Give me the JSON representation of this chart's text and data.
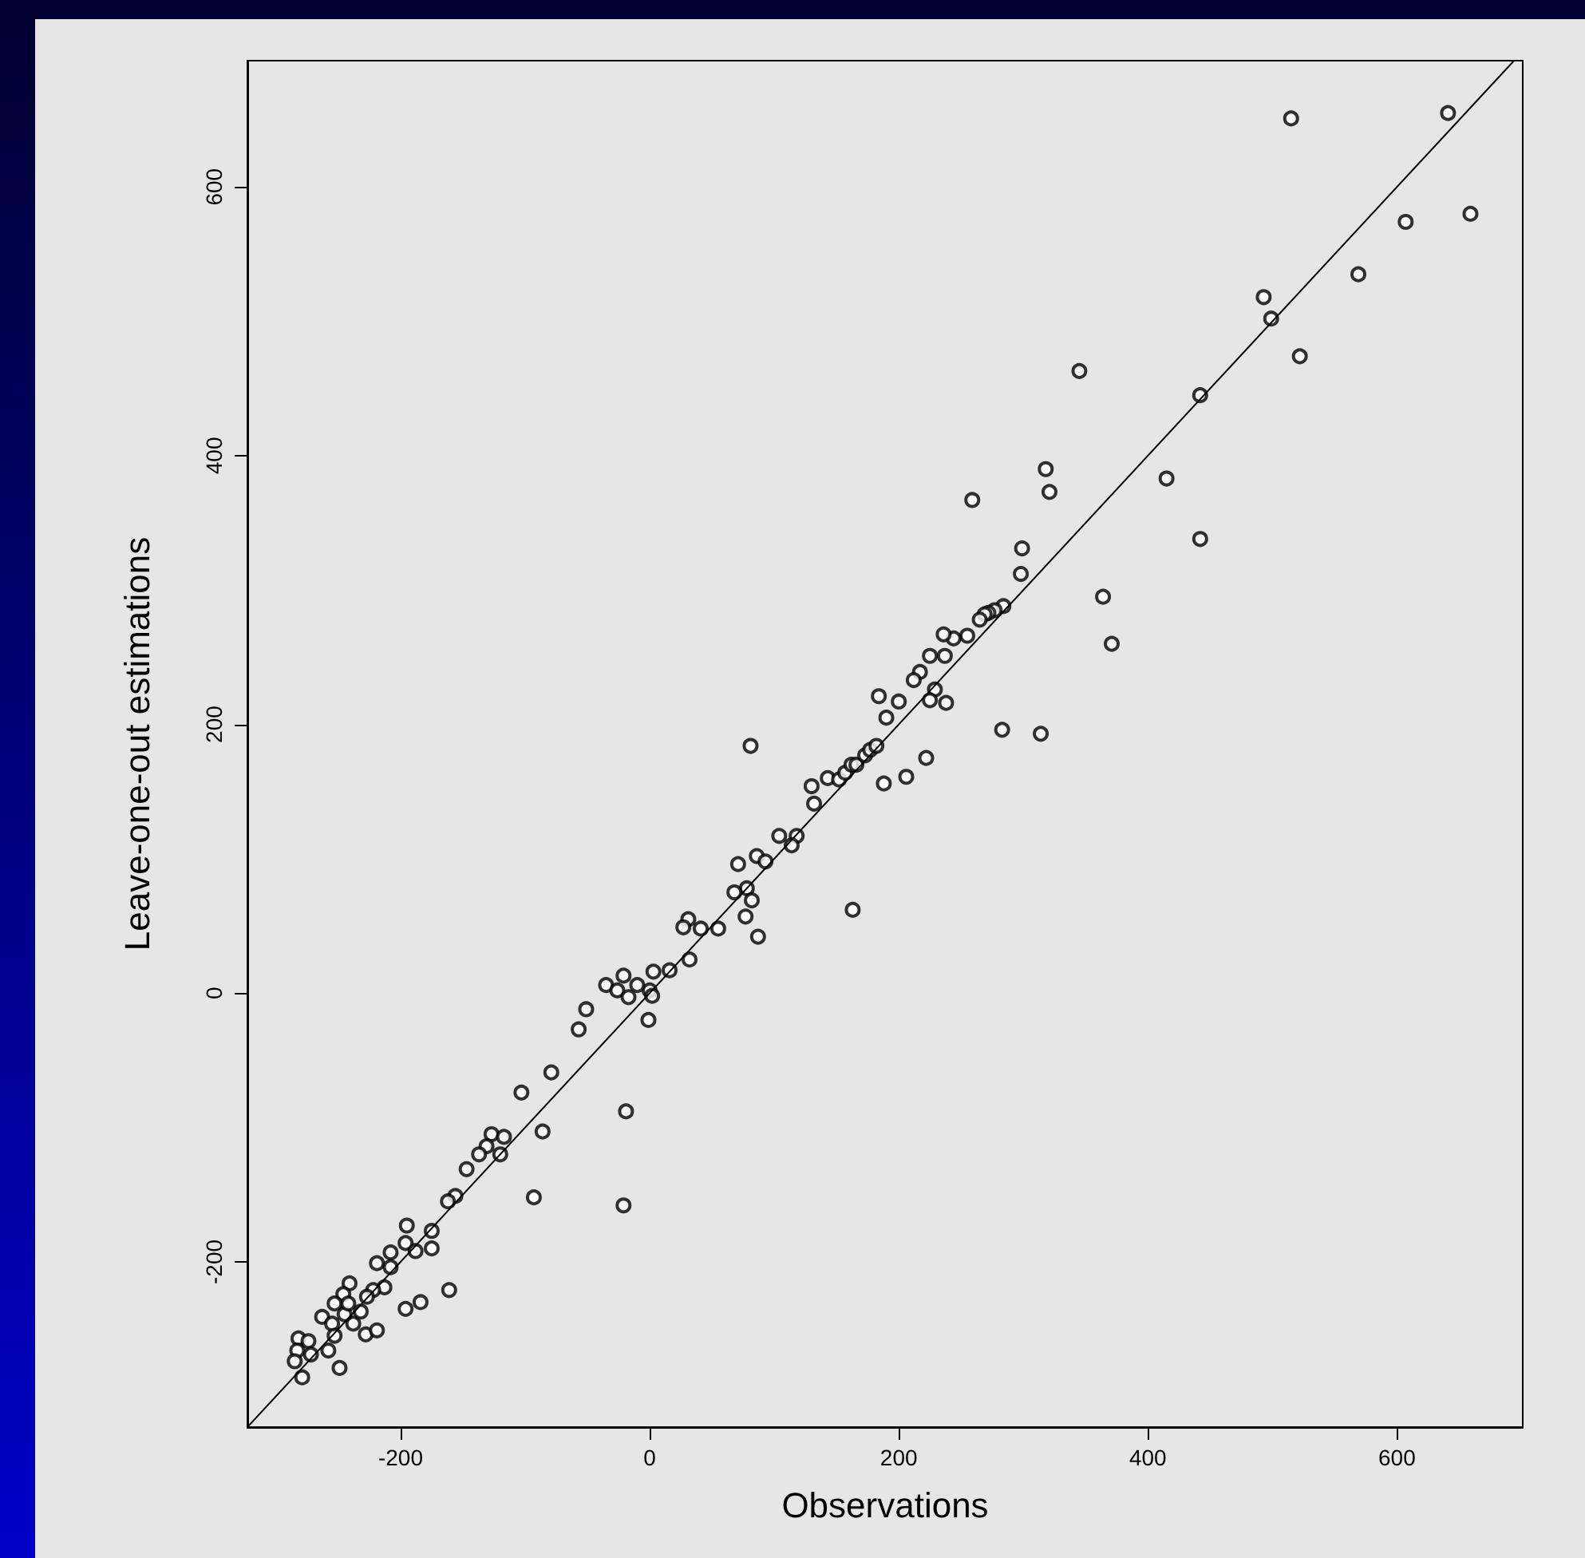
{
  "chart_data": {
    "type": "scatter",
    "xlabel": "Observations",
    "ylabel": "Leave-one-out estimations",
    "xlim": [
      -323,
      701
    ],
    "ylim": [
      -323,
      694
    ],
    "xticks": [
      -200,
      0,
      200,
      400,
      600
    ],
    "yticks": [
      -200,
      0,
      200,
      400,
      600
    ],
    "grid": false,
    "series": [
      {
        "color": "#000000",
        "marker": "circle",
        "x": [
          515,
          641,
          659,
          607,
          569,
          493,
          499,
          522,
          345,
          442,
          318,
          321,
          259,
          415,
          442,
          299,
          298,
          364,
          371,
          284,
          277,
          272,
          269,
          265,
          255,
          244,
          236,
          237,
          225,
          217,
          212,
          200,
          229,
          225,
          238,
          283,
          314,
          184,
          190,
          81,
          222,
          188,
          206,
          130,
          143,
          152,
          157,
          162,
          166,
          173,
          177,
          182,
          132,
          104,
          118,
          114,
          86,
          93,
          71,
          78,
          68,
          82,
          77,
          87,
          163,
          31,
          27,
          41,
          55,
          32,
          16,
          3,
          0,
          2,
          -1,
          -35,
          -21,
          -26,
          -17,
          -10,
          -51,
          -57,
          -79,
          -103,
          -19,
          -86,
          -127,
          -117,
          -120,
          -131,
          -137,
          -147,
          -93,
          -21,
          -156,
          -162,
          -175,
          -195,
          -196,
          -188,
          -208,
          -175,
          -219,
          -208,
          -196,
          -184,
          -161,
          -228,
          -219,
          -213,
          -222,
          -227,
          -241,
          -246,
          -253,
          -263,
          -255,
          -238,
          -232,
          -245,
          -242,
          -253,
          -258,
          -282,
          -274,
          -283,
          -272,
          -285,
          -279,
          -249
        ],
        "values": [
          651,
          655,
          580,
          574,
          535,
          518,
          502,
          474,
          463,
          445,
          390,
          373,
          367,
          383,
          338,
          331,
          312,
          295,
          260,
          288,
          285,
          283,
          282,
          278,
          266,
          264,
          267,
          251,
          251,
          239,
          233,
          217,
          226,
          218,
          216,
          196,
          193,
          221,
          205,
          184,
          175,
          156,
          161,
          154,
          160,
          159,
          164,
          170,
          170,
          177,
          181,
          184,
          141,
          117,
          117,
          110,
          102,
          98,
          96,
          78,
          75,
          69,
          57,
          42,
          62,
          55,
          49,
          48,
          48,
          25,
          17,
          16,
          2,
          -2,
          -20,
          6,
          13,
          2,
          -3,
          6,
          -12,
          -27,
          -59,
          -74,
          -88,
          -103,
          -105,
          -107,
          -120,
          -114,
          -120,
          -131,
          -152,
          -158,
          -151,
          -155,
          -177,
          -173,
          -186,
          -192,
          -193,
          -190,
          -201,
          -204,
          -235,
          -230,
          -221,
          -254,
          -251,
          -219,
          -221,
          -226,
          -216,
          -224,
          -231,
          -241,
          -246,
          -246,
          -237,
          -239,
          -231,
          -255,
          -266,
          -257,
          -259,
          -266,
          -269,
          -274,
          -286,
          -279
        ]
      },
      {
        "type": "line",
        "color": "#000000",
        "marker": "none",
        "line_style": "solid",
        "x": [
          -323,
          694
        ],
        "values": [
          -323,
          694
        ]
      }
    ]
  }
}
